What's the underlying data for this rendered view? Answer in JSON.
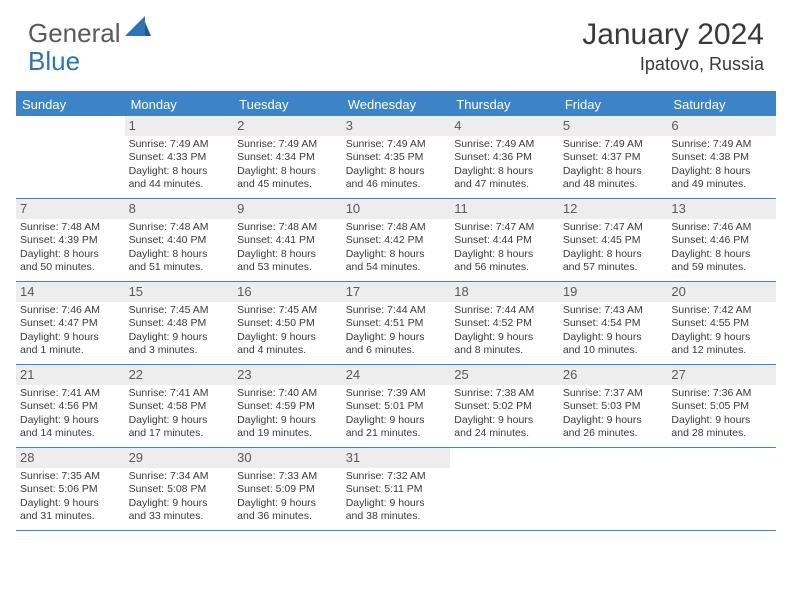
{
  "logo": {
    "general": "General",
    "blue": "Blue"
  },
  "title": "January 2024",
  "location": "Ipatovo, Russia",
  "colors": {
    "header_blue": "#3d84c6",
    "daynum_bg": "#ededed",
    "text": "#3a3a3a",
    "logo_gray": "#5a5a5a",
    "logo_blue": "#2e75b6"
  },
  "weekdays": [
    "Sunday",
    "Monday",
    "Tuesday",
    "Wednesday",
    "Thursday",
    "Friday",
    "Saturday"
  ],
  "weeks": [
    [
      {
        "n": "",
        "l1": "",
        "l2": "",
        "l3": "",
        "l4": ""
      },
      {
        "n": "1",
        "l1": "Sunrise: 7:49 AM",
        "l2": "Sunset: 4:33 PM",
        "l3": "Daylight: 8 hours",
        "l4": "and 44 minutes."
      },
      {
        "n": "2",
        "l1": "Sunrise: 7:49 AM",
        "l2": "Sunset: 4:34 PM",
        "l3": "Daylight: 8 hours",
        "l4": "and 45 minutes."
      },
      {
        "n": "3",
        "l1": "Sunrise: 7:49 AM",
        "l2": "Sunset: 4:35 PM",
        "l3": "Daylight: 8 hours",
        "l4": "and 46 minutes."
      },
      {
        "n": "4",
        "l1": "Sunrise: 7:49 AM",
        "l2": "Sunset: 4:36 PM",
        "l3": "Daylight: 8 hours",
        "l4": "and 47 minutes."
      },
      {
        "n": "5",
        "l1": "Sunrise: 7:49 AM",
        "l2": "Sunset: 4:37 PM",
        "l3": "Daylight: 8 hours",
        "l4": "and 48 minutes."
      },
      {
        "n": "6",
        "l1": "Sunrise: 7:49 AM",
        "l2": "Sunset: 4:38 PM",
        "l3": "Daylight: 8 hours",
        "l4": "and 49 minutes."
      }
    ],
    [
      {
        "n": "7",
        "l1": "Sunrise: 7:48 AM",
        "l2": "Sunset: 4:39 PM",
        "l3": "Daylight: 8 hours",
        "l4": "and 50 minutes."
      },
      {
        "n": "8",
        "l1": "Sunrise: 7:48 AM",
        "l2": "Sunset: 4:40 PM",
        "l3": "Daylight: 8 hours",
        "l4": "and 51 minutes."
      },
      {
        "n": "9",
        "l1": "Sunrise: 7:48 AM",
        "l2": "Sunset: 4:41 PM",
        "l3": "Daylight: 8 hours",
        "l4": "and 53 minutes."
      },
      {
        "n": "10",
        "l1": "Sunrise: 7:48 AM",
        "l2": "Sunset: 4:42 PM",
        "l3": "Daylight: 8 hours",
        "l4": "and 54 minutes."
      },
      {
        "n": "11",
        "l1": "Sunrise: 7:47 AM",
        "l2": "Sunset: 4:44 PM",
        "l3": "Daylight: 8 hours",
        "l4": "and 56 minutes."
      },
      {
        "n": "12",
        "l1": "Sunrise: 7:47 AM",
        "l2": "Sunset: 4:45 PM",
        "l3": "Daylight: 8 hours",
        "l4": "and 57 minutes."
      },
      {
        "n": "13",
        "l1": "Sunrise: 7:46 AM",
        "l2": "Sunset: 4:46 PM",
        "l3": "Daylight: 8 hours",
        "l4": "and 59 minutes."
      }
    ],
    [
      {
        "n": "14",
        "l1": "Sunrise: 7:46 AM",
        "l2": "Sunset: 4:47 PM",
        "l3": "Daylight: 9 hours",
        "l4": "and 1 minute."
      },
      {
        "n": "15",
        "l1": "Sunrise: 7:45 AM",
        "l2": "Sunset: 4:48 PM",
        "l3": "Daylight: 9 hours",
        "l4": "and 3 minutes."
      },
      {
        "n": "16",
        "l1": "Sunrise: 7:45 AM",
        "l2": "Sunset: 4:50 PM",
        "l3": "Daylight: 9 hours",
        "l4": "and 4 minutes."
      },
      {
        "n": "17",
        "l1": "Sunrise: 7:44 AM",
        "l2": "Sunset: 4:51 PM",
        "l3": "Daylight: 9 hours",
        "l4": "and 6 minutes."
      },
      {
        "n": "18",
        "l1": "Sunrise: 7:44 AM",
        "l2": "Sunset: 4:52 PM",
        "l3": "Daylight: 9 hours",
        "l4": "and 8 minutes."
      },
      {
        "n": "19",
        "l1": "Sunrise: 7:43 AM",
        "l2": "Sunset: 4:54 PM",
        "l3": "Daylight: 9 hours",
        "l4": "and 10 minutes."
      },
      {
        "n": "20",
        "l1": "Sunrise: 7:42 AM",
        "l2": "Sunset: 4:55 PM",
        "l3": "Daylight: 9 hours",
        "l4": "and 12 minutes."
      }
    ],
    [
      {
        "n": "21",
        "l1": "Sunrise: 7:41 AM",
        "l2": "Sunset: 4:56 PM",
        "l3": "Daylight: 9 hours",
        "l4": "and 14 minutes."
      },
      {
        "n": "22",
        "l1": "Sunrise: 7:41 AM",
        "l2": "Sunset: 4:58 PM",
        "l3": "Daylight: 9 hours",
        "l4": "and 17 minutes."
      },
      {
        "n": "23",
        "l1": "Sunrise: 7:40 AM",
        "l2": "Sunset: 4:59 PM",
        "l3": "Daylight: 9 hours",
        "l4": "and 19 minutes."
      },
      {
        "n": "24",
        "l1": "Sunrise: 7:39 AM",
        "l2": "Sunset: 5:01 PM",
        "l3": "Daylight: 9 hours",
        "l4": "and 21 minutes."
      },
      {
        "n": "25",
        "l1": "Sunrise: 7:38 AM",
        "l2": "Sunset: 5:02 PM",
        "l3": "Daylight: 9 hours",
        "l4": "and 24 minutes."
      },
      {
        "n": "26",
        "l1": "Sunrise: 7:37 AM",
        "l2": "Sunset: 5:03 PM",
        "l3": "Daylight: 9 hours",
        "l4": "and 26 minutes."
      },
      {
        "n": "27",
        "l1": "Sunrise: 7:36 AM",
        "l2": "Sunset: 5:05 PM",
        "l3": "Daylight: 9 hours",
        "l4": "and 28 minutes."
      }
    ],
    [
      {
        "n": "28",
        "l1": "Sunrise: 7:35 AM",
        "l2": "Sunset: 5:06 PM",
        "l3": "Daylight: 9 hours",
        "l4": "and 31 minutes."
      },
      {
        "n": "29",
        "l1": "Sunrise: 7:34 AM",
        "l2": "Sunset: 5:08 PM",
        "l3": "Daylight: 9 hours",
        "l4": "and 33 minutes."
      },
      {
        "n": "30",
        "l1": "Sunrise: 7:33 AM",
        "l2": "Sunset: 5:09 PM",
        "l3": "Daylight: 9 hours",
        "l4": "and 36 minutes."
      },
      {
        "n": "31",
        "l1": "Sunrise: 7:32 AM",
        "l2": "Sunset: 5:11 PM",
        "l3": "Daylight: 9 hours",
        "l4": "and 38 minutes."
      },
      {
        "n": "",
        "l1": "",
        "l2": "",
        "l3": "",
        "l4": ""
      },
      {
        "n": "",
        "l1": "",
        "l2": "",
        "l3": "",
        "l4": ""
      },
      {
        "n": "",
        "l1": "",
        "l2": "",
        "l3": "",
        "l4": ""
      }
    ]
  ]
}
